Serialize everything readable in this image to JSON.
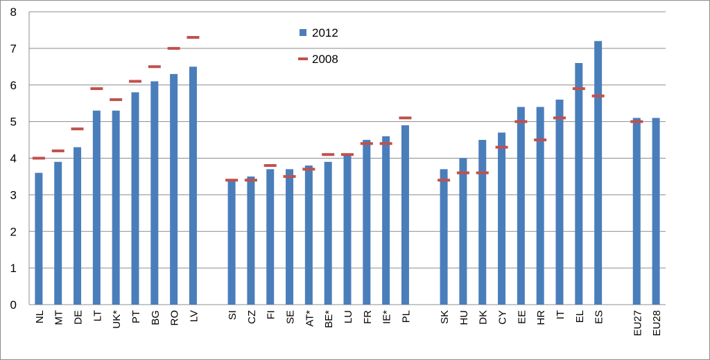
{
  "chart_data": {
    "type": "bar",
    "title": "",
    "xlabel": "",
    "ylabel": "",
    "ylim": [
      0,
      8
    ],
    "yticks": [
      0,
      1,
      2,
      3,
      4,
      5,
      6,
      7,
      8
    ],
    "grid": true,
    "legend_position": "top-center",
    "categories": [
      "NL",
      "MT",
      "DE",
      "LT",
      "UK*",
      "PT",
      "BG",
      "RO",
      "LV",
      "",
      "SI",
      "CZ",
      "FI",
      "SE",
      "AT*",
      "BE*",
      "LU",
      "FR",
      "IE*",
      "PL",
      "",
      "SK",
      "HU",
      "DK",
      "CY",
      "EE",
      "HR",
      "IT",
      "EL",
      "ES",
      "",
      "EU27",
      "EU28"
    ],
    "series": [
      {
        "name": "2012",
        "mark": "bar",
        "color": "#4a7ebb",
        "values": [
          3.6,
          3.9,
          4.3,
          5.3,
          5.3,
          5.8,
          6.1,
          6.3,
          6.5,
          null,
          3.4,
          3.5,
          3.7,
          3.7,
          3.8,
          3.9,
          4.1,
          4.5,
          4.6,
          4.9,
          null,
          3.7,
          4.0,
          4.5,
          4.7,
          5.4,
          5.4,
          5.6,
          6.6,
          7.2,
          null,
          5.1,
          5.1
        ]
      },
      {
        "name": "2008",
        "mark": "dash",
        "color": "#c0504d",
        "values": [
          4.0,
          4.2,
          4.8,
          5.9,
          5.6,
          6.1,
          6.5,
          7.0,
          7.3,
          null,
          3.4,
          3.4,
          3.8,
          3.5,
          3.7,
          4.1,
          4.1,
          4.4,
          4.4,
          5.1,
          null,
          3.4,
          3.6,
          3.6,
          4.3,
          5.0,
          4.5,
          5.1,
          5.9,
          5.7,
          null,
          5.0,
          null
        ]
      }
    ]
  }
}
